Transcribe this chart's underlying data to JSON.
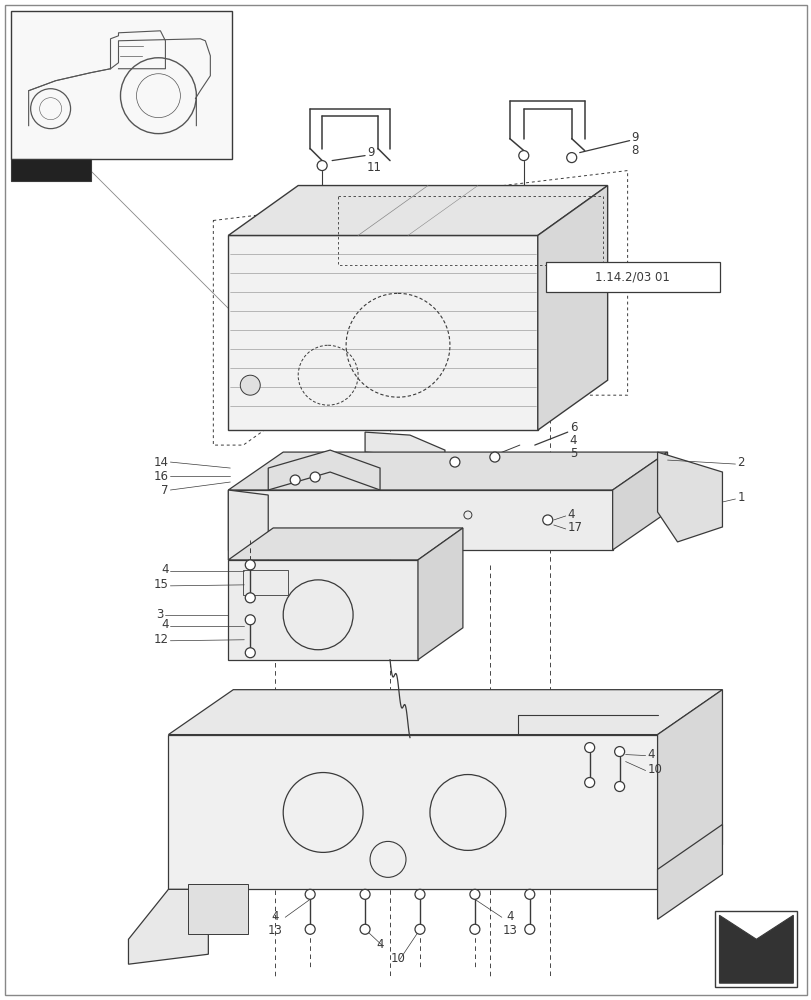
{
  "bg_color": "#ffffff",
  "lc": "#3a3a3a",
  "figsize": [
    8.12,
    10.0
  ],
  "dpi": 100,
  "ref_label": "1.14.2/03 01"
}
